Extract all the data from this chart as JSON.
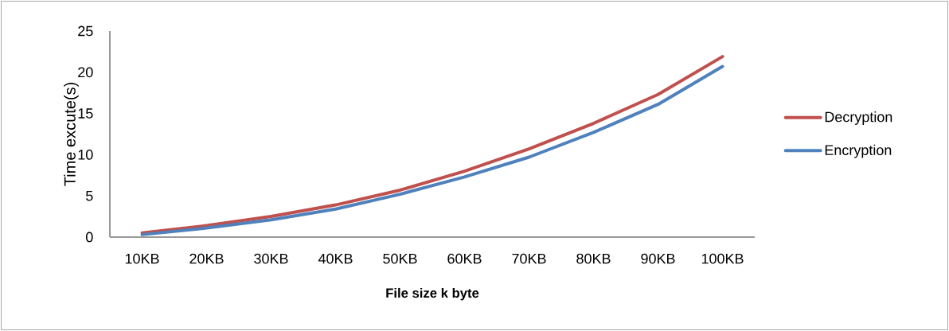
{
  "chart_data": {
    "type": "line",
    "xlabel": "File size k byte",
    "ylabel": "Time excute(s)",
    "categories": [
      "10KB",
      "20KB",
      "30KB",
      "40KB",
      "50KB",
      "60KB",
      "70KB",
      "80KB",
      "90KB",
      "100KB"
    ],
    "series": [
      {
        "name": "Decryption",
        "color": "#c0504d",
        "values": [
          0.5,
          1.4,
          2.5,
          3.9,
          5.7,
          8.0,
          10.7,
          13.8,
          17.3,
          21.9
        ]
      },
      {
        "name": "Encryption",
        "color": "#4f81bd",
        "values": [
          0.3,
          1.1,
          2.1,
          3.4,
          5.2,
          7.3,
          9.7,
          12.7,
          16.1,
          20.7
        ]
      }
    ],
    "ylim": [
      0,
      25
    ],
    "yticks": [
      0,
      5,
      10,
      15,
      20,
      25
    ],
    "grid": false,
    "legend": "right",
    "marker": "none",
    "line_style": "solid"
  }
}
